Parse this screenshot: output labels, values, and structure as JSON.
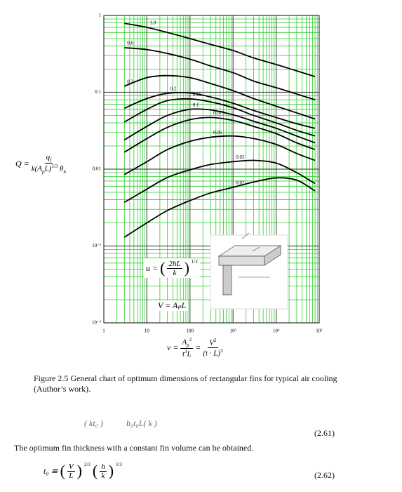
{
  "chart_data": {
    "type": "line",
    "log_x": true,
    "log_y": true,
    "grid": true,
    "minor_grid": true,
    "grid_color": "#2ecc2e",
    "xlim": [
      1,
      100000
    ],
    "xticks": [
      1,
      10,
      100,
      {
        "value": 1000,
        "label": "10³"
      },
      {
        "value": 10000,
        "label": "10⁴"
      },
      {
        "value": 100000,
        "label": "10⁵"
      }
    ],
    "ylim": [
      0.0001,
      1
    ],
    "yticks": [
      {
        "value": 0.0001,
        "label": "10⁻⁴"
      },
      {
        "value": 0.001,
        "label": "10⁻³"
      },
      0.01,
      0.1,
      1
    ],
    "x": [
      3,
      10,
      30,
      100,
      300,
      1000,
      3000,
      10000,
      30000,
      80000
    ],
    "series": [
      {
        "name": "1.0",
        "color": "#000000",
        "values": [
          0.79,
          0.7,
          0.6,
          0.5,
          0.42,
          0.35,
          0.28,
          0.23,
          0.19,
          0.16
        ]
      },
      {
        "name": "0.6",
        "color": "#000000",
        "values": [
          0.38,
          0.36,
          0.32,
          0.27,
          0.22,
          0.18,
          0.14,
          0.115,
          0.095,
          0.08
        ]
      },
      {
        "name": "0.3",
        "color": "#000000",
        "values": [
          0.12,
          0.155,
          0.165,
          0.155,
          0.13,
          0.105,
          0.083,
          0.066,
          0.054,
          0.045
        ]
      },
      {
        "name": "0.2",
        "color": "#000000",
        "values": [
          0.062,
          0.083,
          0.097,
          0.098,
          0.087,
          0.072,
          0.058,
          0.047,
          0.039,
          0.034
        ]
      },
      {
        "name": "0.15",
        "color": "#000000",
        "values": [
          0.041,
          0.06,
          0.078,
          0.082,
          0.075,
          0.063,
          0.05,
          0.04,
          0.032,
          0.027
        ]
      },
      {
        "name": "0.1",
        "color": "#000000",
        "values": [
          0.024,
          0.036,
          0.05,
          0.06,
          0.059,
          0.051,
          0.042,
          0.034,
          0.027,
          0.022
        ]
      },
      {
        "name": "0.075",
        "color": "#000000",
        "values": [
          0.0166,
          0.025,
          0.035,
          0.044,
          0.047,
          0.043,
          0.036,
          0.029,
          0.022,
          0.018
        ]
      },
      {
        "name": "0.05",
        "color": "#000000",
        "values": [
          0.0085,
          0.0125,
          0.018,
          0.023,
          0.026,
          0.027,
          0.025,
          0.021,
          0.016,
          0.013
        ]
      },
      {
        "name": "0.03",
        "color": "#000000",
        "values": [
          0.0037,
          0.0055,
          0.0078,
          0.0098,
          0.0115,
          0.0125,
          0.013,
          0.012,
          0.009,
          0.0065
        ]
      },
      {
        "name": "0.02",
        "color": "#000000",
        "values": [
          0.0013,
          0.002,
          0.0029,
          0.0039,
          0.0049,
          0.0058,
          0.0068,
          0.0077,
          0.0072,
          0.0052
        ]
      }
    ]
  },
  "document": {
    "y_formula": {
      "lhs": "Q =",
      "num": [
        "q",
        "f"
      ],
      "den": [
        "k(A",
        "p",
        "L)",
        "1/3",
        " θ",
        "b"
      ]
    },
    "x_formula": {
      "lhs": "v =",
      "f1_num": [
        "A",
        "p",
        "2"
      ],
      "f1_den": [
        "t",
        "3",
        "L"
      ],
      "eq": "=",
      "f2_num": [
        "V",
        "2"
      ],
      "f2_den": [
        "(t · L)",
        "3"
      ]
    },
    "u_formula": [
      "u =",
      "2hL",
      "k",
      "1/2"
    ],
    "v_formula": "V = AₚL",
    "caption": "Figure 2.5 General chart of optimum dimensions of rectangular fins for typical air cooling (Author’s work).",
    "eq_2_61_fragment": [
      "( kt₀ )",
      "b₀t₀L( k )"
    ],
    "eq_2_61_number": "(2.61)",
    "text": "The optimum fin thickness with a constant fin volume can be obtained.",
    "eq_2_62": {
      "lhs": "t₀ ≅",
      "a_num": "V",
      "a_den": "L",
      "a_exp": "2/3",
      "b_num": "h",
      "b_den": "k",
      "b_exp": "1/3",
      "number": "(2.62)"
    }
  }
}
